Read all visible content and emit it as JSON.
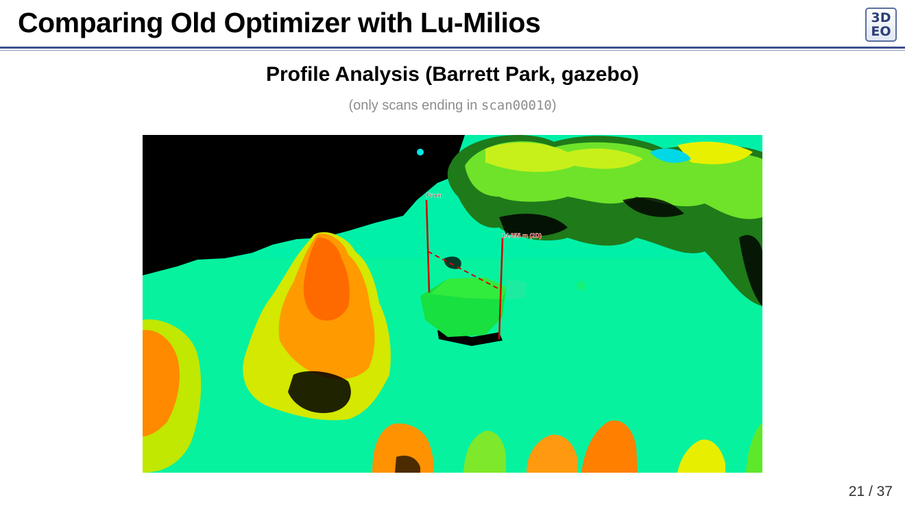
{
  "slide": {
    "title": "Comparing Old Optimizer with Lu-Milios",
    "subtitle": "Profile Analysis (Barrett Park, gazebo)",
    "note_prefix": "(only scans ending in ",
    "note_code": "scan00010",
    "note_suffix": ")",
    "page": "21 / 37"
  },
  "logo": {
    "line1": "3D",
    "line2": "EO"
  },
  "figure": {
    "label_from": "From",
    "label_distance": "14.355 m (2D)",
    "colors": {
      "ground": "#00f0a8",
      "void": "#000000",
      "trees_high": "#ff7a00",
      "trees_mid": "#ffd400",
      "trees_low": "#5fe82a",
      "gazebo": "#18e040",
      "marker": "#d40000"
    }
  }
}
